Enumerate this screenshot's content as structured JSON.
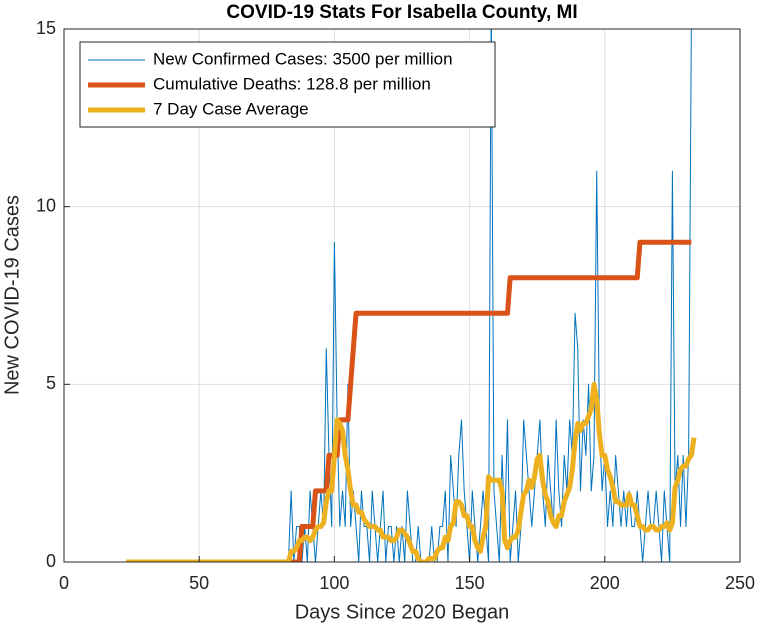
{
  "chart_data": {
    "type": "line",
    "title": "COVID-19 Stats For Isabella County, MI",
    "xlabel": "Days Since 2020 Began",
    "ylabel": "New COVID-19 Cases",
    "xlim": [
      0,
      250
    ],
    "xticks": [
      0,
      50,
      100,
      150,
      200,
      250
    ],
    "ylim": [
      0,
      15
    ],
    "yticks": [
      0,
      5,
      10,
      15
    ],
    "grid": true,
    "legend": "upper left",
    "x": [
      23,
      24,
      25,
      26,
      27,
      28,
      29,
      30,
      31,
      32,
      33,
      34,
      35,
      36,
      37,
      38,
      39,
      40,
      41,
      42,
      43,
      44,
      45,
      46,
      47,
      48,
      49,
      50,
      51,
      52,
      53,
      54,
      55,
      56,
      57,
      58,
      59,
      60,
      61,
      62,
      63,
      64,
      65,
      66,
      67,
      68,
      69,
      70,
      71,
      72,
      73,
      74,
      75,
      76,
      77,
      78,
      79,
      80,
      81,
      82,
      83,
      84,
      85,
      86,
      87,
      88,
      89,
      90,
      91,
      92,
      93,
      94,
      95,
      96,
      97,
      98,
      99,
      100,
      101,
      102,
      103,
      104,
      105,
      106,
      107,
      108,
      109,
      110,
      111,
      112,
      113,
      114,
      115,
      116,
      117,
      118,
      119,
      120,
      121,
      122,
      123,
      124,
      125,
      126,
      127,
      128,
      129,
      130,
      131,
      132,
      133,
      134,
      135,
      136,
      137,
      138,
      139,
      140,
      141,
      142,
      143,
      144,
      145,
      146,
      147,
      148,
      149,
      150,
      151,
      152,
      153,
      154,
      155,
      156,
      157,
      158,
      159,
      160,
      161,
      162,
      163,
      164,
      165,
      166,
      167,
      168,
      169,
      170,
      171,
      172,
      173,
      174,
      175,
      176,
      177,
      178,
      179,
      180,
      181,
      182,
      183,
      184,
      185,
      186,
      187,
      188,
      189,
      190,
      191,
      192,
      193,
      194,
      195,
      196,
      197,
      198,
      199,
      200,
      201,
      202,
      203,
      204,
      205,
      206,
      207,
      208,
      209,
      210,
      211,
      212,
      213,
      214,
      215,
      216,
      217,
      218,
      219,
      220,
      221,
      222,
      223,
      224,
      225,
      226,
      227,
      228,
      229,
      230,
      231,
      232,
      233
    ],
    "series": [
      {
        "name": "New Confirmed Cases: 3500 per million",
        "color": "#0072BD",
        "values": [
          0,
          0,
          0,
          0,
          0,
          0,
          0,
          0,
          0,
          0,
          0,
          0,
          0,
          0,
          0,
          0,
          0,
          0,
          0,
          0,
          0,
          0,
          0,
          0,
          0,
          0,
          0,
          0,
          0,
          0,
          0,
          0,
          0,
          0,
          0,
          0,
          0,
          0,
          0,
          0,
          0,
          0,
          0,
          0,
          0,
          0,
          0,
          0,
          0,
          0,
          0,
          0,
          0,
          0,
          0,
          0,
          0,
          0,
          0,
          0,
          0,
          2,
          0,
          1,
          1,
          0,
          1,
          0,
          2,
          1,
          0,
          1,
          2,
          1,
          6,
          3,
          1,
          9,
          4,
          1,
          2,
          1,
          5,
          1,
          2,
          1,
          0,
          2,
          1,
          1,
          0,
          2,
          1,
          0,
          1,
          2,
          0,
          1,
          1,
          0,
          1,
          0,
          1,
          0,
          2,
          1,
          0,
          0,
          1,
          0,
          0,
          0,
          0,
          1,
          0,
          0,
          1,
          1,
          2,
          0,
          3,
          2,
          1,
          3,
          4,
          2,
          1,
          0,
          2,
          1,
          0,
          1,
          2,
          1,
          0,
          16,
          2,
          1,
          0,
          3,
          1,
          4,
          0,
          1,
          2,
          0,
          1,
          4,
          3,
          2,
          1,
          2,
          3,
          4,
          2,
          1,
          3,
          2,
          1,
          4,
          2,
          1,
          3,
          2,
          4,
          3,
          7,
          6,
          2,
          4,
          3,
          5,
          2,
          3,
          11,
          4,
          2,
          3,
          1,
          2,
          1,
          3,
          2,
          1,
          2,
          1,
          2,
          1,
          1,
          2,
          1,
          0,
          1,
          2,
          1,
          1,
          2,
          1,
          0,
          2,
          1,
          0,
          11,
          2,
          3,
          1,
          3,
          1,
          3,
          15,
          16
        ]
      },
      {
        "name": "Cumulative Deaths: 128.8 per million",
        "color": "#D95319",
        "values": [
          0,
          0,
          0,
          0,
          0,
          0,
          0,
          0,
          0,
          0,
          0,
          0,
          0,
          0,
          0,
          0,
          0,
          0,
          0,
          0,
          0,
          0,
          0,
          0,
          0,
          0,
          0,
          0,
          0,
          0,
          0,
          0,
          0,
          0,
          0,
          0,
          0,
          0,
          0,
          0,
          0,
          0,
          0,
          0,
          0,
          0,
          0,
          0,
          0,
          0,
          0,
          0,
          0,
          0,
          0,
          0,
          0,
          0,
          0,
          0,
          0,
          0,
          0,
          0,
          0,
          1,
          1,
          1,
          1,
          1,
          2,
          2,
          2,
          2,
          2,
          3,
          3,
          3,
          3,
          4,
          4,
          4,
          4,
          5,
          6,
          7,
          7,
          7,
          7,
          7,
          7,
          7,
          7,
          7,
          7,
          7,
          7,
          7,
          7,
          7,
          7,
          7,
          7,
          7,
          7,
          7,
          7,
          7,
          7,
          7,
          7,
          7,
          7,
          7,
          7,
          7,
          7,
          7,
          7,
          7,
          7,
          7,
          7,
          7,
          7,
          7,
          7,
          7,
          7,
          7,
          7,
          7,
          7,
          7,
          7,
          7,
          7,
          7,
          7,
          7,
          7,
          7,
          8,
          8,
          8,
          8,
          8,
          8,
          8,
          8,
          8,
          8,
          8,
          8,
          8,
          8,
          8,
          8,
          8,
          8,
          8,
          8,
          8,
          8,
          8,
          8,
          8,
          8,
          8,
          8,
          8,
          8,
          8,
          8,
          8,
          8,
          8,
          8,
          8,
          8,
          8,
          8,
          8,
          8,
          8,
          8,
          8,
          8,
          8,
          8,
          9,
          9,
          9,
          9,
          9,
          9,
          9,
          9,
          9,
          9,
          9,
          9,
          9,
          9,
          9,
          9,
          9,
          9,
          9,
          9,
          null
        ]
      },
      {
        "name": "7 Day Case Average",
        "color": "#EDB120",
        "values": [
          0,
          0,
          0,
          0,
          0,
          0,
          0,
          0,
          0,
          0,
          0,
          0,
          0,
          0,
          0,
          0,
          0,
          0,
          0,
          0,
          0,
          0,
          0,
          0,
          0,
          0,
          0,
          0,
          0,
          0,
          0,
          0,
          0,
          0,
          0,
          0,
          0,
          0,
          0,
          0,
          0,
          0,
          0,
          0,
          0,
          0,
          0,
          0,
          0,
          0,
          0,
          0,
          0,
          0,
          0,
          0,
          0,
          0,
          0,
          0,
          0,
          0.3,
          0.3,
          0.4,
          0.6,
          0.6,
          0.7,
          0.7,
          0.6,
          0.7,
          0.9,
          1,
          1,
          1.1,
          1.7,
          2,
          2,
          3,
          4,
          3.9,
          3.7,
          3,
          2.6,
          2,
          1.6,
          1.6,
          1.4,
          1.4,
          1.2,
          1.1,
          1,
          1,
          1,
          0.9,
          0.9,
          0.7,
          0.7,
          0.7,
          0.6,
          0.6,
          0.7,
          0.9,
          0.9,
          0.8,
          0.7,
          0.5,
          0.3,
          0.3,
          0.1,
          0,
          0,
          0,
          0.1,
          0.1,
          0.1,
          0.3,
          0.4,
          0.4,
          0.7,
          0.6,
          1,
          1.1,
          1.7,
          1.7,
          1.6,
          1.3,
          1.3,
          1,
          1,
          0.6,
          0.4,
          0.3,
          0.7,
          1,
          2.4,
          2.3,
          2.3,
          2.3,
          2.3,
          2,
          0.6,
          0.4,
          0.6,
          0.7,
          0.7,
          0.9,
          1.4,
          1.9,
          2,
          2.3,
          2.1,
          2.4,
          2.9,
          3,
          2.3,
          1.9,
          1.7,
          1.3,
          1.1,
          1,
          1.3,
          1.3,
          1.7,
          1.9,
          2.1,
          2.6,
          3.4,
          3.9,
          3.7,
          3.9,
          3.9,
          4.1,
          4.3,
          5,
          4.6,
          3.6,
          3,
          3,
          2.6,
          2.4,
          2.1,
          1.7,
          1.7,
          1.6,
          1.6,
          1.6,
          1.9,
          1.6,
          1.6,
          1.3,
          1,
          1,
          0.9,
          0.9,
          1,
          1,
          0.9,
          0.9,
          1,
          1,
          1.1,
          0.9,
          1.1,
          2.1,
          2.3,
          2.6,
          2.7,
          2.7,
          2.9,
          3,
          3.5
        ]
      }
    ]
  }
}
